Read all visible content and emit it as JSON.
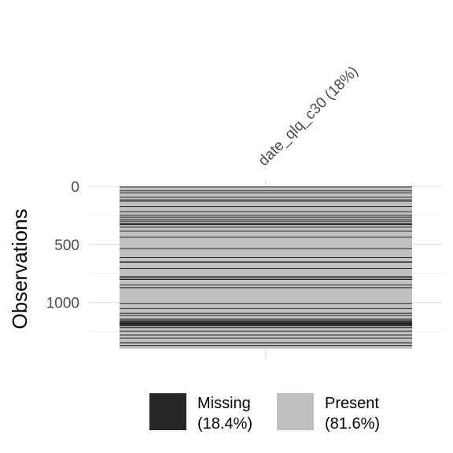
{
  "chart_data": {
    "type": "heatmap",
    "ylabel": "Observations",
    "columns": [
      "date_qlq_c30 (18%)"
    ],
    "n_observations": 1400,
    "y_ticks": [
      0,
      500,
      1000
    ],
    "ylim": [
      0,
      1400
    ],
    "grid": true,
    "legend_position": "bottom",
    "legend": [
      {
        "label": "Missing",
        "sublabel": "(18.4%)",
        "color": "#272727"
      },
      {
        "label": "Present",
        "sublabel": "(81.6%)",
        "color": "#c0c0c0"
      }
    ],
    "missing_runs": [
      [
        2,
        9
      ],
      [
        35,
        37
      ],
      [
        52,
        53
      ],
      [
        90,
        92
      ],
      [
        113,
        115
      ],
      [
        125,
        130
      ],
      [
        170,
        171
      ],
      [
        215,
        217
      ],
      [
        245,
        246
      ],
      [
        262,
        265
      ],
      [
        282,
        285
      ],
      [
        296,
        303
      ],
      [
        315,
        320
      ],
      [
        323,
        333
      ],
      [
        348,
        349
      ],
      [
        383,
        384
      ],
      [
        433,
        434
      ],
      [
        533,
        537
      ],
      [
        610,
        611
      ],
      [
        647,
        657
      ],
      [
        705,
        706
      ],
      [
        775,
        776
      ],
      [
        785,
        792
      ],
      [
        800,
        803
      ],
      [
        845,
        846
      ],
      [
        870,
        872
      ],
      [
        1005,
        1007
      ],
      [
        1050,
        1052
      ],
      [
        1090,
        1091
      ],
      [
        1110,
        1111
      ],
      [
        1140,
        1142
      ],
      [
        1150,
        1151
      ],
      [
        1160,
        1163
      ],
      [
        1168,
        1205
      ],
      [
        1215,
        1216
      ],
      [
        1245,
        1247
      ],
      [
        1278,
        1279
      ],
      [
        1305,
        1306
      ],
      [
        1345,
        1346
      ],
      [
        1370,
        1371
      ]
    ]
  }
}
